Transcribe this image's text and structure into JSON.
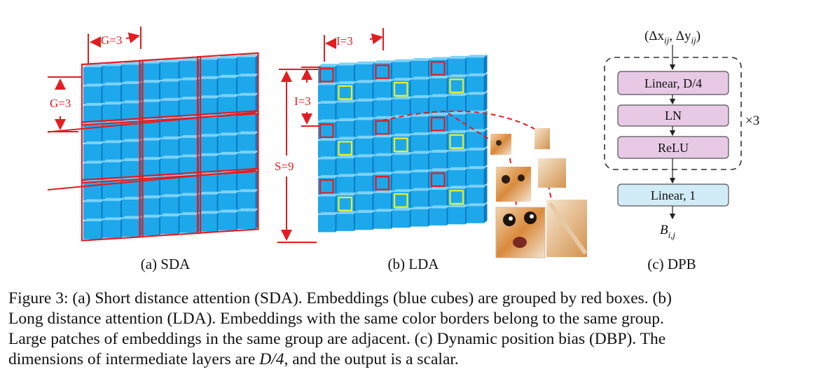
{
  "sda": {
    "label_top": "G=3",
    "label_left": "G=3",
    "subcaption": "(a) SDA"
  },
  "lda": {
    "label_top": "I=3",
    "label_left": "I=3",
    "label_span": "S=9",
    "subcaption": "(b) LDA"
  },
  "dpb": {
    "input_label": "(Δx",
    "input_sub1": "ij",
    "input_mid": ", Δy",
    "input_sub2": "ij",
    "input_end": ")",
    "block1": "Linear, D/4",
    "block2": "LN",
    "block3": "ReLU",
    "repeat": "×3",
    "block4": "Linear, 1",
    "output_main": "B",
    "output_sub": "i,j",
    "subcaption": "(c) DPB",
    "colors": {
      "pink": "#e7c9e6",
      "blue": "#d2ecf7"
    }
  },
  "colors": {
    "cube_face": "#1da8ec",
    "cube_top": "#7dd2f8",
    "cube_side": "#0b7bc0",
    "red": "#e11d22",
    "yellow": "#e8ee2a"
  },
  "caption": {
    "line1": "Figure 3: (a) Short distance attention (SDA). Embeddings (blue cubes) are grouped by red boxes. (b)",
    "line2": "Long distance attention (LDA). Embeddings with the same color borders belong to the same group.",
    "line3": "Large patches of embeddings in the same group are adjacent. (c) Dynamic position bias (DBP). The",
    "line4_pre": "dimensions of intermediate layers are ",
    "line4_math": "D/4",
    "line4_post": ", and the output is a scalar."
  }
}
